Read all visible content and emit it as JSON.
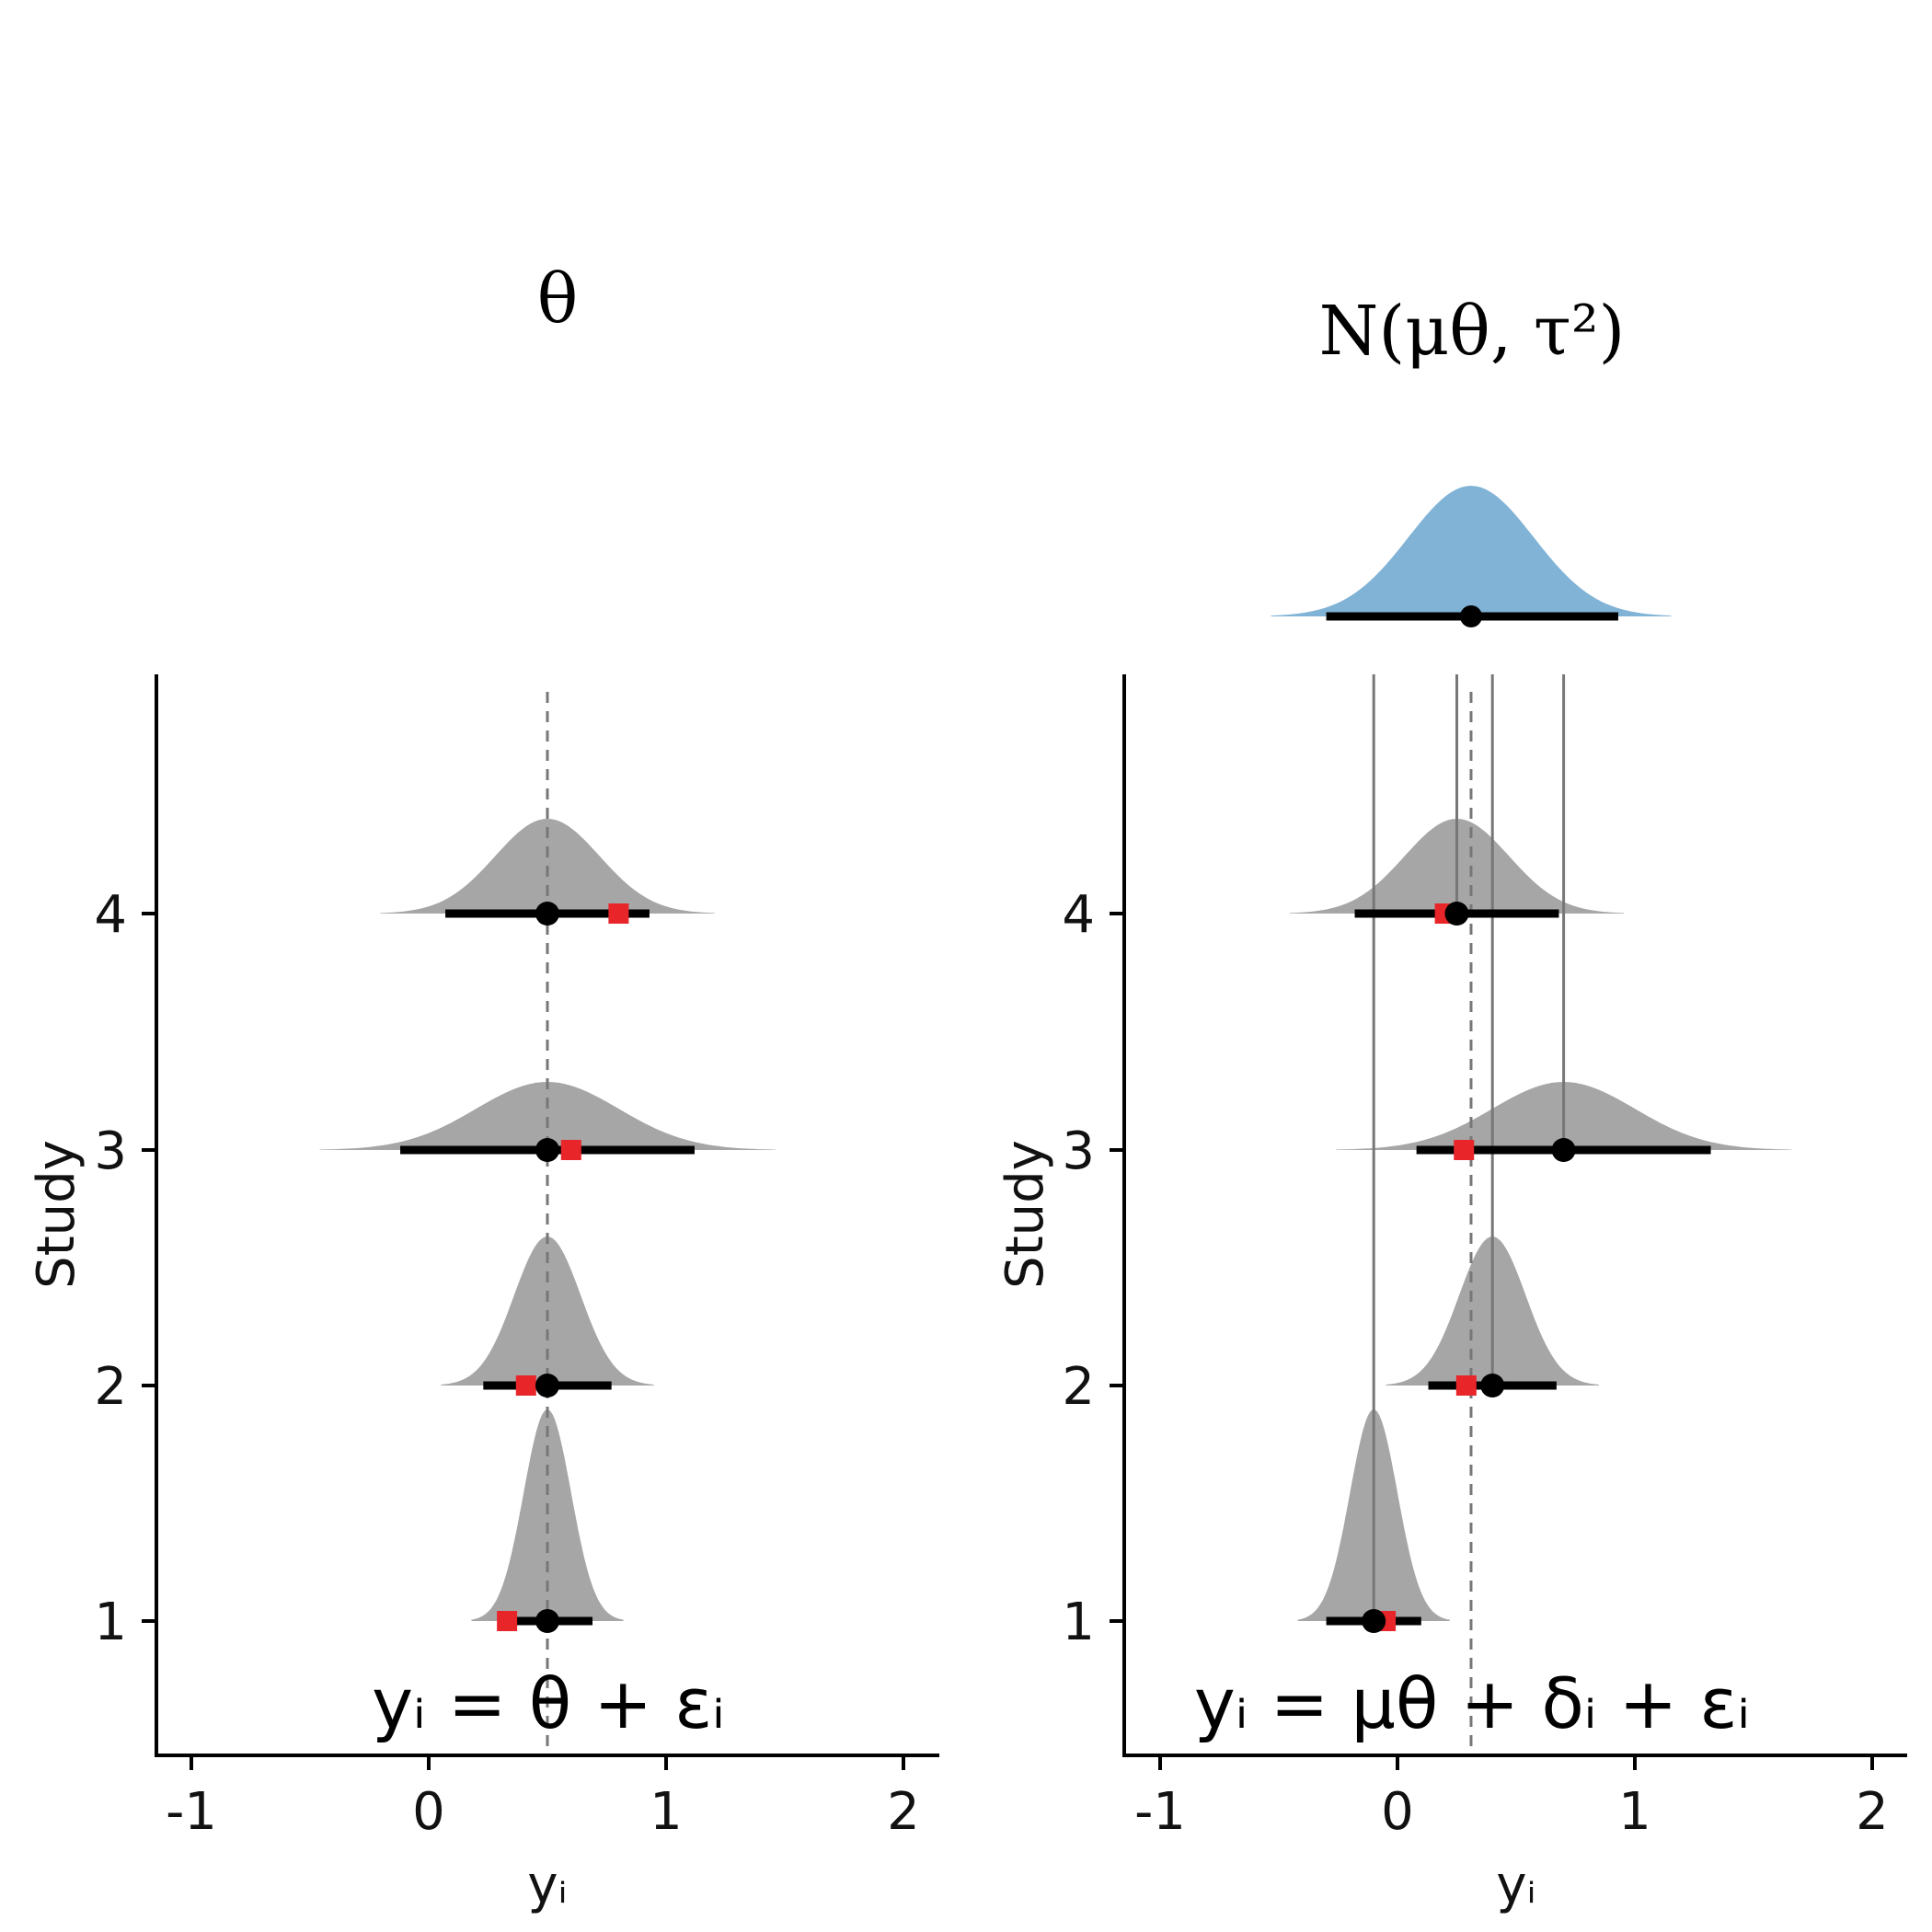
{
  "panels": [
    {
      "id": "fixed",
      "title": "θ",
      "formula": "yᵢ = θ + εᵢ",
      "xlabel": "yᵢ",
      "ylabel": "Study",
      "x_ticks": [
        "-1",
        "0",
        "1",
        "2"
      ],
      "y_ticks": [
        "1",
        "2",
        "3",
        "4"
      ]
    },
    {
      "id": "random",
      "title": "N(μθ, τ²)",
      "formula": "yᵢ = μθ + δᵢ + εᵢ",
      "xlabel": "yᵢ",
      "ylabel": "Study",
      "x_ticks": [
        "-1",
        "0",
        "1",
        "2"
      ],
      "y_ticks": [
        "1",
        "2",
        "3",
        "4"
      ]
    }
  ],
  "chart_data": [
    {
      "type": "density-ridge",
      "panel": "fixed",
      "xlim": [
        -1.15,
        2.15
      ],
      "ylim": [
        0.4,
        4.95
      ],
      "reference_line": 0.5,
      "colors": {
        "density": "#a6a6a6",
        "estimate": "#000000",
        "observed": "#e8262a",
        "reference": "#777777"
      },
      "studies": [
        {
          "study": 1,
          "mean": 0.5,
          "sd": 0.1,
          "ci": [
            0.31,
            0.69
          ],
          "observed": 0.33
        },
        {
          "study": 2,
          "mean": 0.5,
          "sd": 0.14,
          "ci": [
            0.23,
            0.77
          ],
          "observed": 0.41
        },
        {
          "study": 3,
          "mean": 0.5,
          "sd": 0.3,
          "ci": [
            -0.12,
            1.12
          ],
          "observed": 0.6
        },
        {
          "study": 4,
          "mean": 0.5,
          "sd": 0.22,
          "ci": [
            0.07,
            0.93
          ],
          "observed": 0.8
        }
      ]
    },
    {
      "type": "density-ridge",
      "panel": "random",
      "xlim": [
        -1.15,
        2.15
      ],
      "ylim": [
        0.4,
        4.95
      ],
      "reference_line": 0.31,
      "colors": {
        "density": "#a6a6a6",
        "estimate": "#000000",
        "observed": "#e8262a",
        "reference": "#777777",
        "population": "#80b3d6"
      },
      "population": {
        "mean": 0.31,
        "sd": 0.31,
        "ci": [
          -0.3,
          0.93
        ]
      },
      "studies": [
        {
          "study": 1,
          "mean": -0.1,
          "sd": 0.1,
          "ci": [
            -0.3,
            0.1
          ],
          "observed": -0.05
        },
        {
          "study": 2,
          "mean": 0.4,
          "sd": 0.14,
          "ci": [
            0.13,
            0.67
          ],
          "observed": 0.29
        },
        {
          "study": 3,
          "mean": 0.7,
          "sd": 0.3,
          "ci": [
            0.08,
            1.32
          ],
          "observed": 0.28
        },
        {
          "study": 4,
          "mean": 0.25,
          "sd": 0.22,
          "ci": [
            -0.18,
            0.68
          ],
          "observed": 0.2
        }
      ]
    }
  ]
}
